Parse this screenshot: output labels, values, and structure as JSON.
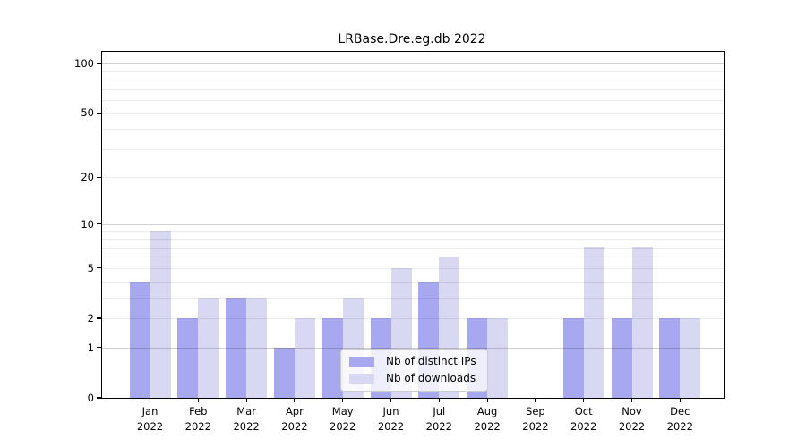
{
  "title": "LRBase.Dre.eg.db 2022",
  "chart_data": {
    "type": "bar",
    "categories": [
      "Jan",
      "Feb",
      "Mar",
      "Apr",
      "May",
      "Jun",
      "Jul",
      "Aug",
      "Sep",
      "Oct",
      "Nov",
      "Dec"
    ],
    "x_year_label": "2022",
    "series": [
      {
        "name": "Nb of distinct IPs",
        "color": "#a8a8f0",
        "values": [
          4,
          2,
          3,
          1,
          2,
          2,
          4,
          2,
          0,
          2,
          2,
          2
        ]
      },
      {
        "name": "Nb of downloads",
        "color": "#d8d8f3",
        "values": [
          9,
          3,
          3,
          2,
          3,
          5,
          6,
          2,
          0,
          7,
          7,
          2
        ]
      }
    ],
    "yscale": "log1p",
    "ylim": [
      0,
      117
    ],
    "y_ticks": [
      0,
      1,
      2,
      5,
      10,
      20,
      50,
      100
    ],
    "y_major_gridlines": [
      1,
      10,
      100
    ],
    "y_minor_gridlines": [
      2,
      3,
      4,
      5,
      6,
      7,
      8,
      9,
      20,
      30,
      40,
      50,
      60,
      70,
      80,
      90
    ],
    "legend_position": "lower center",
    "grid": true
  }
}
